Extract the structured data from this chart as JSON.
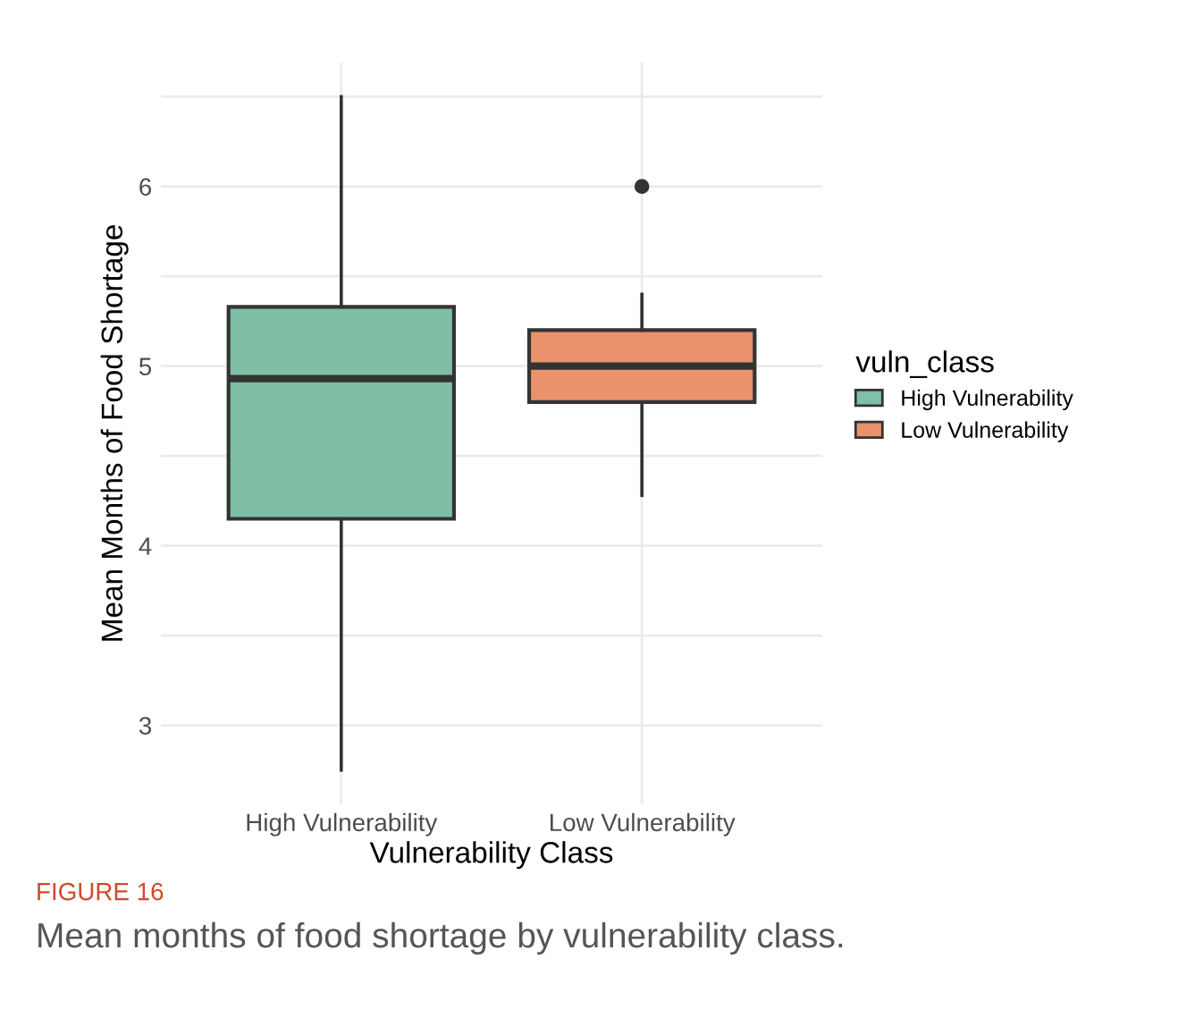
{
  "chart_data": {
    "type": "box",
    "xlabel": "Vulnerability Class",
    "ylabel": "Mean Months of Food Shortage",
    "legend_title": "vuln_class",
    "categories": [
      "High Vulnerability",
      "Low Vulnerability"
    ],
    "series": [
      {
        "name": "High Vulnerability",
        "color": "#7fbfa5",
        "boxes": [
          {
            "low": 2.75,
            "q1": 4.15,
            "median": 4.93,
            "q3": 5.33,
            "high": 6.5
          },
          null
        ]
      },
      {
        "name": "Low Vulnerability",
        "color": "#e9926c",
        "boxes": [
          null,
          {
            "low": 4.28,
            "q1": 4.8,
            "median": 5.0,
            "q3": 5.2,
            "high": 5.4,
            "outliers": [
              6.0
            ]
          }
        ]
      }
    ],
    "ylim": [
      2.56,
      6.69
    ],
    "yticks": [
      3,
      {
        "value": 3.5,
        "label": null
      },
      4,
      {
        "value": 4.5,
        "label": null
      },
      5,
      {
        "value": 5.5,
        "label": null
      },
      6,
      {
        "value": 6.5,
        "label": null
      }
    ],
    "grid": true,
    "legend": "right",
    "annotations": [
      "FIGURE 16",
      "Mean months of food shortage by vulnerability class."
    ]
  }
}
